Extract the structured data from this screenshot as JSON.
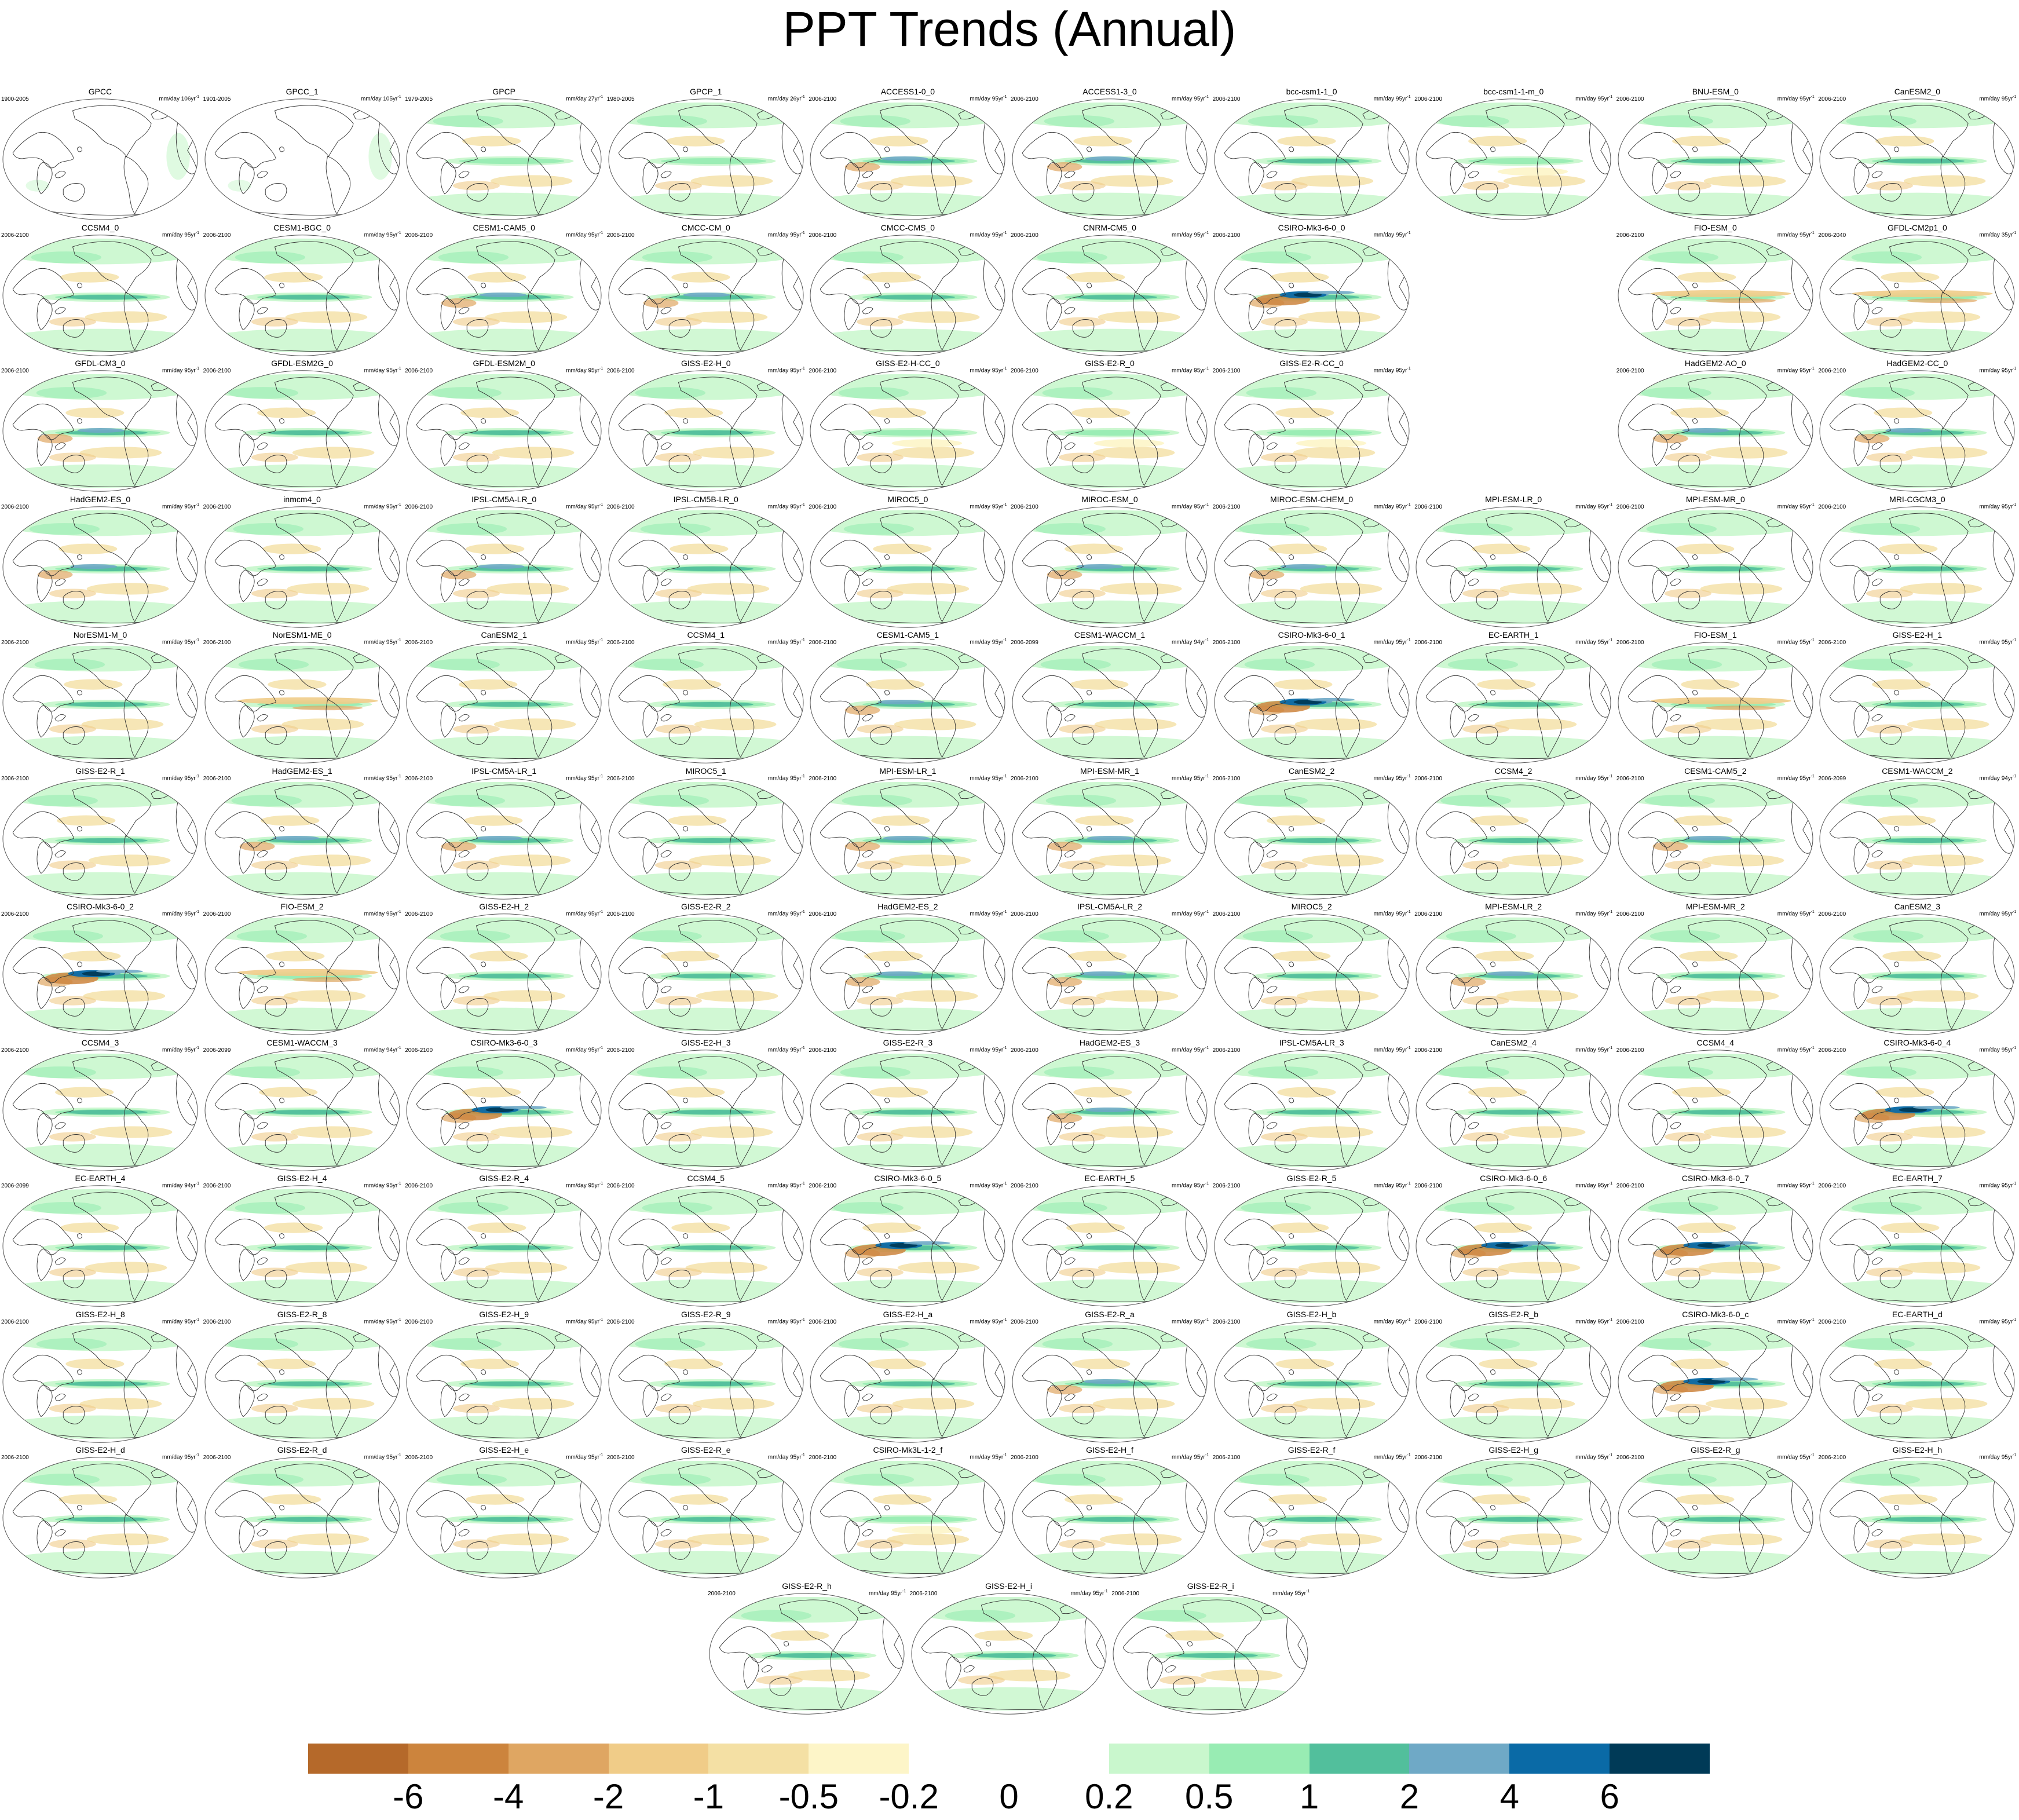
{
  "title": "PPT Trends (Annual)",
  "layers": {
    "ocean": "white",
    "continents": "outline-only",
    "grid": false,
    "projection": "Robinson (Pacific-centred)"
  },
  "panels": [
    {
      "name": "GPCC",
      "period": "1900-2005",
      "units": "mm/day 106yr",
      "sup": "-1",
      "pattern": "obs-land"
    },
    {
      "name": "GPCC_1",
      "period": "1901-2005",
      "units": "mm/day 105yr",
      "sup": "-1",
      "pattern": "obs-land"
    },
    {
      "name": "GPCP",
      "period": "1979-2005",
      "units": "mm/day 27yr",
      "sup": "-1",
      "pattern": "obs"
    },
    {
      "name": "GPCP_1",
      "period": "1980-2005",
      "units": "mm/day 26yr",
      "sup": "-1",
      "pattern": "obs"
    },
    {
      "name": "ACCESS1-0_0",
      "period": "2006-2100",
      "units": "mm/day 95yr",
      "sup": "-1",
      "pattern": "strong"
    },
    {
      "name": "ACCESS1-3_0",
      "period": "2006-2100",
      "units": "mm/day 95yr",
      "sup": "-1",
      "pattern": "strong"
    },
    {
      "name": "bcc-csm1-1_0",
      "period": "2006-2100",
      "units": "mm/day 95yr",
      "sup": "-1",
      "pattern": "normal"
    },
    {
      "name": "bcc-csm1-1-m_0",
      "period": "2006-2100",
      "units": "mm/day 95yr",
      "sup": "-1",
      "pattern": "weak"
    },
    {
      "name": "BNU-ESM_0",
      "period": "2006-2100",
      "units": "mm/day 95yr",
      "sup": "-1",
      "pattern": "normal"
    },
    {
      "name": "CanESM2_0",
      "period": "2006-2100",
      "units": "mm/day 95yr",
      "sup": "-1",
      "pattern": "normal"
    },
    {
      "name": "CCSM4_0",
      "period": "2006-2100",
      "units": "mm/day 95yr",
      "sup": "-1",
      "pattern": "normal"
    },
    {
      "name": "CESM1-BGC_0",
      "period": "2006-2100",
      "units": "mm/day 95yr",
      "sup": "-1",
      "pattern": "normal"
    },
    {
      "name": "CESM1-CAM5_0",
      "period": "2006-2100",
      "units": "mm/day 95yr",
      "sup": "-1",
      "pattern": "strong"
    },
    {
      "name": "CMCC-CM_0",
      "period": "2006-2100",
      "units": "mm/day 95yr",
      "sup": "-1",
      "pattern": "strong"
    },
    {
      "name": "CMCC-CMS_0",
      "period": "2006-2100",
      "units": "mm/day 95yr",
      "sup": "-1",
      "pattern": "normal"
    },
    {
      "name": "CNRM-CM5_0",
      "period": "2006-2100",
      "units": "mm/day 95yr",
      "sup": "-1",
      "pattern": "normal"
    },
    {
      "name": "CSIRO-Mk3-6-0_0",
      "period": "2006-2100",
      "units": "mm/day 95yr",
      "sup": "-1",
      "pattern": "extreme"
    },
    null,
    {
      "name": "FIO-ESM_0",
      "period": "2006-2100",
      "units": "mm/day 95yr",
      "sup": "-1",
      "pattern": "dry"
    },
    {
      "name": "GFDL-CM2p1_0",
      "period": "2006-2040",
      "units": "mm/day 35yr",
      "sup": "-1",
      "pattern": "dry"
    },
    {
      "name": "GFDL-CM3_0",
      "period": "2006-2100",
      "units": "mm/day 95yr",
      "sup": "-1",
      "pattern": "strong"
    },
    {
      "name": "GFDL-ESM2G_0",
      "period": "2006-2100",
      "units": "mm/day 95yr",
      "sup": "-1",
      "pattern": "normal"
    },
    {
      "name": "GFDL-ESM2M_0",
      "period": "2006-2100",
      "units": "mm/day 95yr",
      "sup": "-1",
      "pattern": "normal"
    },
    {
      "name": "GISS-E2-H_0",
      "period": "2006-2100",
      "units": "mm/day 95yr",
      "sup": "-1",
      "pattern": "normal"
    },
    {
      "name": "GISS-E2-H-CC_0",
      "period": "2006-2100",
      "units": "mm/day 95yr",
      "sup": "-1",
      "pattern": "weak"
    },
    {
      "name": "GISS-E2-R_0",
      "period": "2006-2100",
      "units": "mm/day 95yr",
      "sup": "-1",
      "pattern": "weak"
    },
    {
      "name": "GISS-E2-R-CC_0",
      "period": "2006-2100",
      "units": "mm/day 95yr",
      "sup": "-1",
      "pattern": "weak"
    },
    null,
    {
      "name": "HadGEM2-AO_0",
      "period": "2006-2100",
      "units": "mm/day 95yr",
      "sup": "-1",
      "pattern": "strong"
    },
    {
      "name": "HadGEM2-CC_0",
      "period": "2006-2100",
      "units": "mm/day 95yr",
      "sup": "-1",
      "pattern": "strong"
    },
    {
      "name": "HadGEM2-ES_0",
      "period": "2006-2100",
      "units": "mm/day 95yr",
      "sup": "-1",
      "pattern": "strong"
    },
    {
      "name": "inmcm4_0",
      "period": "2006-2100",
      "units": "mm/day 95yr",
      "sup": "-1",
      "pattern": "normal"
    },
    {
      "name": "IPSL-CM5A-LR_0",
      "period": "2006-2100",
      "units": "mm/day 95yr",
      "sup": "-1",
      "pattern": "strong"
    },
    {
      "name": "IPSL-CM5B-LR_0",
      "period": "2006-2100",
      "units": "mm/day 95yr",
      "sup": "-1",
      "pattern": "normal"
    },
    {
      "name": "MIROC5_0",
      "period": "2006-2100",
      "units": "mm/day 95yr",
      "sup": "-1",
      "pattern": "normal"
    },
    {
      "name": "MIROC-ESM_0",
      "period": "2006-2100",
      "units": "mm/day 95yr",
      "sup": "-1",
      "pattern": "strong"
    },
    {
      "name": "MIROC-ESM-CHEM_0",
      "period": "2006-2100",
      "units": "mm/day 95yr",
      "sup": "-1",
      "pattern": "strong"
    },
    {
      "name": "MPI-ESM-LR_0",
      "period": "2006-2100",
      "units": "mm/day 95yr",
      "sup": "-1",
      "pattern": "normal"
    },
    {
      "name": "MPI-ESM-MR_0",
      "period": "2006-2100",
      "units": "mm/day 95yr",
      "sup": "-1",
      "pattern": "normal"
    },
    {
      "name": "MRI-CGCM3_0",
      "period": "2006-2100",
      "units": "mm/day 95yr",
      "sup": "-1",
      "pattern": "normal"
    },
    {
      "name": "NorESM1-M_0",
      "period": "2006-2100",
      "units": "mm/day 95yr",
      "sup": "-1",
      "pattern": "normal"
    },
    {
      "name": "NorESM1-ME_0",
      "period": "2006-2100",
      "units": "mm/day 95yr",
      "sup": "-1",
      "pattern": "dry"
    },
    {
      "name": "CanESM2_1",
      "period": "2006-2100",
      "units": "mm/day 95yr",
      "sup": "-1",
      "pattern": "normal"
    },
    {
      "name": "CCSM4_1",
      "period": "2006-2100",
      "units": "mm/day 95yr",
      "sup": "-1",
      "pattern": "normal"
    },
    {
      "name": "CESM1-CAM5_1",
      "period": "2006-2100",
      "units": "mm/day 95yr",
      "sup": "-1",
      "pattern": "strong"
    },
    {
      "name": "CESM1-WACCM_1",
      "period": "2006-2099",
      "units": "mm/day 94yr",
      "sup": "-1",
      "pattern": "normal"
    },
    {
      "name": "CSIRO-Mk3-6-0_1",
      "period": "2006-2100",
      "units": "mm/day 95yr",
      "sup": "-1",
      "pattern": "extreme"
    },
    {
      "name": "EC-EARTH_1",
      "period": "2006-2100",
      "units": "mm/day 95yr",
      "sup": "-1",
      "pattern": "normal"
    },
    {
      "name": "FIO-ESM_1",
      "period": "2006-2100",
      "units": "mm/day 95yr",
      "sup": "-1",
      "pattern": "dry"
    },
    {
      "name": "GISS-E2-H_1",
      "period": "2006-2100",
      "units": "mm/day 95yr",
      "sup": "-1",
      "pattern": "normal"
    },
    {
      "name": "GISS-E2-R_1",
      "period": "2006-2100",
      "units": "mm/day 95yr",
      "sup": "-1",
      "pattern": "normal"
    },
    {
      "name": "HadGEM2-ES_1",
      "period": "2006-2100",
      "units": "mm/day 95yr",
      "sup": "-1",
      "pattern": "strong"
    },
    {
      "name": "IPSL-CM5A-LR_1",
      "period": "2006-2100",
      "units": "mm/day 95yr",
      "sup": "-1",
      "pattern": "strong"
    },
    {
      "name": "MIROC5_1",
      "period": "2006-2100",
      "units": "mm/day 95yr",
      "sup": "-1",
      "pattern": "normal"
    },
    {
      "name": "MPI-ESM-LR_1",
      "period": "2006-2100",
      "units": "mm/day 95yr",
      "sup": "-1",
      "pattern": "strong"
    },
    {
      "name": "MPI-ESM-MR_1",
      "period": "2006-2100",
      "units": "mm/day 95yr",
      "sup": "-1",
      "pattern": "strong"
    },
    {
      "name": "CanESM2_2",
      "period": "2006-2100",
      "units": "mm/day 95yr",
      "sup": "-1",
      "pattern": "normal"
    },
    {
      "name": "CCSM4_2",
      "period": "2006-2100",
      "units": "mm/day 95yr",
      "sup": "-1",
      "pattern": "normal"
    },
    {
      "name": "CESM1-CAM5_2",
      "period": "2006-2100",
      "units": "mm/day 95yr",
      "sup": "-1",
      "pattern": "strong"
    },
    {
      "name": "CESM1-WACCM_2",
      "period": "2006-2099",
      "units": "mm/day 94yr",
      "sup": "-1",
      "pattern": "normal"
    },
    {
      "name": "CSIRO-Mk3-6-0_2",
      "period": "2006-2100",
      "units": "mm/day 95yr",
      "sup": "-1",
      "pattern": "extreme"
    },
    {
      "name": "FIO-ESM_2",
      "period": "2006-2100",
      "units": "mm/day 95yr",
      "sup": "-1",
      "pattern": "dry"
    },
    {
      "name": "GISS-E2-H_2",
      "period": "2006-2100",
      "units": "mm/day 95yr",
      "sup": "-1",
      "pattern": "normal"
    },
    {
      "name": "GISS-E2-R_2",
      "period": "2006-2100",
      "units": "mm/day 95yr",
      "sup": "-1",
      "pattern": "normal"
    },
    {
      "name": "HadGEM2-ES_2",
      "period": "2006-2100",
      "units": "mm/day 95yr",
      "sup": "-1",
      "pattern": "strong"
    },
    {
      "name": "IPSL-CM5A-LR_2",
      "period": "2006-2100",
      "units": "mm/day 95yr",
      "sup": "-1",
      "pattern": "strong"
    },
    {
      "name": "MIROC5_2",
      "period": "2006-2100",
      "units": "mm/day 95yr",
      "sup": "-1",
      "pattern": "normal"
    },
    {
      "name": "MPI-ESM-LR_2",
      "period": "2006-2100",
      "units": "mm/day 95yr",
      "sup": "-1",
      "pattern": "strong"
    },
    {
      "name": "MPI-ESM-MR_2",
      "period": "2006-2100",
      "units": "mm/day 95yr",
      "sup": "-1",
      "pattern": "normal"
    },
    {
      "name": "CanESM2_3",
      "period": "2006-2100",
      "units": "mm/day 95yr",
      "sup": "-1",
      "pattern": "normal"
    },
    {
      "name": "CCSM4_3",
      "period": "2006-2100",
      "units": "mm/day 95yr",
      "sup": "-1",
      "pattern": "normal"
    },
    {
      "name": "CESM1-WACCM_3",
      "period": "2006-2099",
      "units": "mm/day 94yr",
      "sup": "-1",
      "pattern": "normal"
    },
    {
      "name": "CSIRO-Mk3-6-0_3",
      "period": "2006-2100",
      "units": "mm/day 95yr",
      "sup": "-1",
      "pattern": "extreme"
    },
    {
      "name": "GISS-E2-H_3",
      "period": "2006-2100",
      "units": "mm/day 95yr",
      "sup": "-1",
      "pattern": "normal"
    },
    {
      "name": "GISS-E2-R_3",
      "period": "2006-2100",
      "units": "mm/day 95yr",
      "sup": "-1",
      "pattern": "normal"
    },
    {
      "name": "HadGEM2-ES_3",
      "period": "2006-2100",
      "units": "mm/day 95yr",
      "sup": "-1",
      "pattern": "strong"
    },
    {
      "name": "IPSL-CM5A-LR_3",
      "period": "2006-2100",
      "units": "mm/day 95yr",
      "sup": "-1",
      "pattern": "normal"
    },
    {
      "name": "CanESM2_4",
      "period": "2006-2100",
      "units": "mm/day 95yr",
      "sup": "-1",
      "pattern": "normal"
    },
    {
      "name": "CCSM4_4",
      "period": "2006-2100",
      "units": "mm/day 95yr",
      "sup": "-1",
      "pattern": "normal"
    },
    {
      "name": "CSIRO-Mk3-6-0_4",
      "period": "2006-2100",
      "units": "mm/day 95yr",
      "sup": "-1",
      "pattern": "extreme"
    },
    {
      "name": "EC-EARTH_4",
      "period": "2006-2099",
      "units": "mm/day 94yr",
      "sup": "-1",
      "pattern": "normal"
    },
    {
      "name": "GISS-E2-H_4",
      "period": "2006-2100",
      "units": "mm/day 95yr",
      "sup": "-1",
      "pattern": "normal"
    },
    {
      "name": "GISS-E2-R_4",
      "period": "2006-2100",
      "units": "mm/day 95yr",
      "sup": "-1",
      "pattern": "normal"
    },
    {
      "name": "CCSM4_5",
      "period": "2006-2100",
      "units": "mm/day 95yr",
      "sup": "-1",
      "pattern": "normal"
    },
    {
      "name": "CSIRO-Mk3-6-0_5",
      "period": "2006-2100",
      "units": "mm/day 95yr",
      "sup": "-1",
      "pattern": "extreme"
    },
    {
      "name": "EC-EARTH_5",
      "period": "2006-2100",
      "units": "mm/day 95yr",
      "sup": "-1",
      "pattern": "normal"
    },
    {
      "name": "GISS-E2-R_5",
      "period": "2006-2100",
      "units": "mm/day 95yr",
      "sup": "-1",
      "pattern": "normal"
    },
    {
      "name": "CSIRO-Mk3-6-0_6",
      "period": "2006-2100",
      "units": "mm/day 95yr",
      "sup": "-1",
      "pattern": "extreme"
    },
    {
      "name": "CSIRO-Mk3-6-0_7",
      "period": "2006-2100",
      "units": "mm/day 95yr",
      "sup": "-1",
      "pattern": "extreme"
    },
    {
      "name": "EC-EARTH_7",
      "period": "2006-2100",
      "units": "mm/day 95yr",
      "sup": "-1",
      "pattern": "normal"
    },
    {
      "name": "GISS-E2-H_8",
      "period": "2006-2100",
      "units": "mm/day 95yr",
      "sup": "-1",
      "pattern": "normal"
    },
    {
      "name": "GISS-E2-R_8",
      "period": "2006-2100",
      "units": "mm/day 95yr",
      "sup": "-1",
      "pattern": "normal"
    },
    {
      "name": "GISS-E2-H_9",
      "period": "2006-2100",
      "units": "mm/day 95yr",
      "sup": "-1",
      "pattern": "normal"
    },
    {
      "name": "GISS-E2-R_9",
      "period": "2006-2100",
      "units": "mm/day 95yr",
      "sup": "-1",
      "pattern": "normal"
    },
    {
      "name": "GISS-E2-H_a",
      "period": "2006-2100",
      "units": "mm/day 95yr",
      "sup": "-1",
      "pattern": "normal"
    },
    {
      "name": "GISS-E2-R_a",
      "period": "2006-2100",
      "units": "mm/day 95yr",
      "sup": "-1",
      "pattern": "strong"
    },
    {
      "name": "GISS-E2-H_b",
      "period": "2006-2100",
      "units": "mm/day 95yr",
      "sup": "-1",
      "pattern": "normal"
    },
    {
      "name": "GISS-E2-R_b",
      "period": "2006-2100",
      "units": "mm/day 95yr",
      "sup": "-1",
      "pattern": "normal"
    },
    {
      "name": "CSIRO-Mk3-6-0_c",
      "period": "2006-2100",
      "units": "mm/day 95yr",
      "sup": "-1",
      "pattern": "extreme"
    },
    {
      "name": "EC-EARTH_d",
      "period": "2006-2100",
      "units": "mm/day 95yr",
      "sup": "-1",
      "pattern": "normal"
    },
    {
      "name": "GISS-E2-H_d",
      "period": "2006-2100",
      "units": "mm/day 95yr",
      "sup": "-1",
      "pattern": "normal"
    },
    {
      "name": "GISS-E2-R_d",
      "period": "2006-2100",
      "units": "mm/day 95yr",
      "sup": "-1",
      "pattern": "normal"
    },
    {
      "name": "GISS-E2-H_e",
      "period": "2006-2100",
      "units": "mm/day 95yr",
      "sup": "-1",
      "pattern": "normal"
    },
    {
      "name": "GISS-E2-R_e",
      "period": "2006-2100",
      "units": "mm/day 95yr",
      "sup": "-1",
      "pattern": "normal"
    },
    {
      "name": "CSIRO-Mk3L-1-2_f",
      "period": "2006-2100",
      "units": "mm/day 95yr",
      "sup": "-1",
      "pattern": "weak"
    },
    {
      "name": "GISS-E2-H_f",
      "period": "2006-2100",
      "units": "mm/day 95yr",
      "sup": "-1",
      "pattern": "normal"
    },
    {
      "name": "GISS-E2-R_f",
      "period": "2006-2100",
      "units": "mm/day 95yr",
      "sup": "-1",
      "pattern": "normal"
    },
    {
      "name": "GISS-E2-H_g",
      "period": "2006-2100",
      "units": "mm/day 95yr",
      "sup": "-1",
      "pattern": "normal"
    },
    {
      "name": "GISS-E2-R_g",
      "period": "2006-2100",
      "units": "mm/day 95yr",
      "sup": "-1",
      "pattern": "normal"
    },
    {
      "name": "GISS-E2-H_h",
      "period": "2006-2100",
      "units": "mm/day 95yr",
      "sup": "-1",
      "pattern": "normal"
    },
    {
      "name": "GISS-E2-R_h",
      "period": "2006-2100",
      "units": "mm/day 95yr",
      "sup": "-1",
      "pattern": "normal"
    },
    {
      "name": "GISS-E2-H_i",
      "period": "2006-2100",
      "units": "mm/day 95yr",
      "sup": "-1",
      "pattern": "normal"
    },
    {
      "name": "GISS-E2-R_i",
      "period": "2006-2100",
      "units": "mm/day 95yr",
      "sup": "-1",
      "pattern": "normal"
    }
  ],
  "colorbar": {
    "labels": [
      "-6",
      "-4",
      "-2",
      "-1",
      "-0.5",
      "-0.2",
      "0",
      "0.2",
      "0.5",
      "1",
      "2",
      "4",
      "6"
    ],
    "colors": [
      "#b5692a",
      "#cc843d",
      "#dfa662",
      "#f0cc88",
      "#f4e0a4",
      "#fdf5c8",
      "#ffffff",
      "#ffffff",
      "#c9f7cd",
      "#98ecb3",
      "#52bf9c",
      "#6fa9c6",
      "#0a6aa6",
      "#003a57"
    ]
  }
}
